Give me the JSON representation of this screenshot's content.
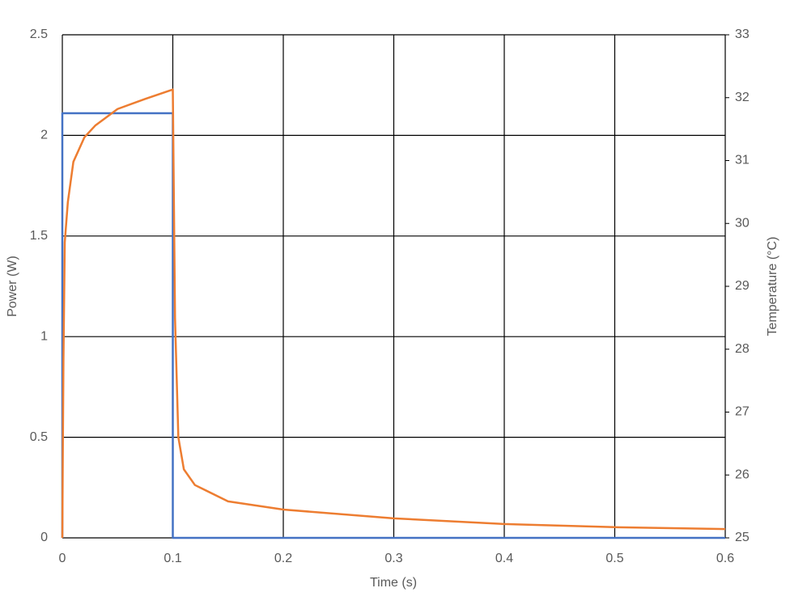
{
  "chart_data": {
    "type": "line",
    "xlabel": "Time (s)",
    "ylabel": "Power (W)",
    "y2label": "Temperature (°C)",
    "series": [
      {
        "name": "Power",
        "color": "#4472c4",
        "x": [
          0,
          0,
          0.1,
          0.1,
          0.6
        ],
        "values": [
          0,
          2.11,
          2.11,
          0,
          0
        ]
      },
      {
        "name": "Temperature",
        "color": "#ed7d31",
        "axis": "y2",
        "x": [
          0,
          0.0005,
          0.001,
          0.0022,
          0.005,
          0.01,
          0.02,
          0.03,
          0.05,
          0.075,
          0.1,
          0.102,
          0.105,
          0.11,
          0.12,
          0.15,
          0.2,
          0.3,
          0.4,
          0.5,
          0.6
        ],
        "values": [
          25,
          26.5,
          27.8,
          29.7,
          30.34,
          30.98,
          31.37,
          31.56,
          31.82,
          31.98,
          32.13,
          28.5,
          26.6,
          26.09,
          25.84,
          25.58,
          25.45,
          25.31,
          25.22,
          25.17,
          25.14
        ]
      }
    ],
    "xlim": [
      0,
      0.6
    ],
    "xticks": [
      0,
      0.1,
      0.2,
      0.3,
      0.4,
      0.5,
      0.6
    ],
    "ylim": [
      0,
      2.5
    ],
    "yticks": [
      0,
      0.5,
      1,
      1.5,
      2,
      2.5
    ],
    "y2lim": [
      25,
      33
    ],
    "y2ticks": [
      25,
      26,
      27,
      28,
      29,
      30,
      31,
      32,
      33
    ],
    "grid": true
  }
}
